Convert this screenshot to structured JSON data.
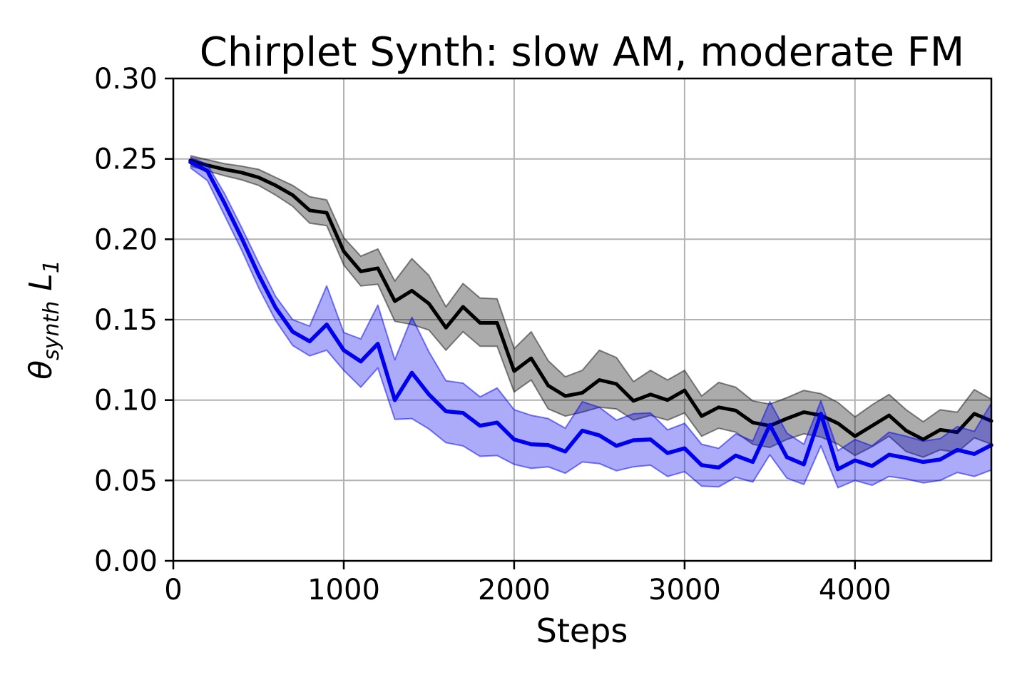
{
  "chart_data": {
    "type": "line",
    "title": "Chirplet Synth: slow AM, moderate FM",
    "xlabel": "Steps",
    "ylabel": "θ_synth L_1",
    "ylabel_parts": [
      "θ",
      "synth",
      "L",
      "1"
    ],
    "xlim": [
      0,
      4800
    ],
    "ylim": [
      0.0,
      0.3
    ],
    "grid": true,
    "legend": "none",
    "background_color": "#ffffff",
    "grid_color": "#b2b2b2",
    "spine_color": "#000000",
    "xticks": [
      {
        "v": 0,
        "label": "0"
      },
      {
        "v": 1000,
        "label": "1000"
      },
      {
        "v": 2000,
        "label": "2000"
      },
      {
        "v": 3000,
        "label": "3000"
      },
      {
        "v": 4000,
        "label": "4000"
      }
    ],
    "yticks": [
      {
        "v": 0.0,
        "label": "0.00"
      },
      {
        "v": 0.05,
        "label": "0.05"
      },
      {
        "v": 0.1,
        "label": "0.10"
      },
      {
        "v": 0.15,
        "label": "0.15"
      },
      {
        "v": 0.2,
        "label": "0.20"
      },
      {
        "v": 0.25,
        "label": "0.25"
      },
      {
        "v": 0.3,
        "label": "0.30"
      }
    ],
    "steps": [
      100,
      200,
      300,
      400,
      500,
      600,
      700,
      800,
      900,
      1000,
      1100,
      1200,
      1300,
      1400,
      1500,
      1600,
      1700,
      1800,
      1900,
      2000,
      2100,
      2200,
      2300,
      2400,
      2500,
      2600,
      2700,
      2800,
      2900,
      3000,
      3100,
      3200,
      3300,
      3400,
      3500,
      3600,
      3700,
      3800,
      3900,
      4000,
      4100,
      4200,
      4300,
      4400,
      4500,
      4600,
      4700,
      4800
    ],
    "series": [
      {
        "id": "black-curve",
        "color": "#000000",
        "band_fill": "rgba(0,0,0,0.33)",
        "band_edge": "rgba(0,0,0,0.45)",
        "line_width": 5,
        "mean": [
          0.249,
          0.246,
          0.2435,
          0.2415,
          0.2385,
          0.2335,
          0.2275,
          0.218,
          0.2165,
          0.1925,
          0.18,
          0.182,
          0.1615,
          0.168,
          0.16,
          0.145,
          0.158,
          0.148,
          0.148,
          0.118,
          0.126,
          0.109,
          0.1025,
          0.1045,
          0.1125,
          0.11,
          0.0995,
          0.1035,
          0.1,
          0.106,
          0.09,
          0.0955,
          0.0935,
          0.086,
          0.084,
          0.0885,
          0.0925,
          0.0905,
          0.0855,
          0.0775,
          0.084,
          0.0905,
          0.081,
          0.0755,
          0.0815,
          0.08,
          0.0915,
          0.087
        ],
        "band_hi": [
          0.252,
          0.2495,
          0.247,
          0.2455,
          0.2435,
          0.2385,
          0.2335,
          0.2265,
          0.2245,
          0.201,
          0.1895,
          0.194,
          0.174,
          0.188,
          0.1775,
          0.158,
          0.1725,
          0.1635,
          0.163,
          0.132,
          0.1425,
          0.1245,
          0.1145,
          0.1185,
          0.131,
          0.1265,
          0.1115,
          0.1185,
          0.1125,
          0.1185,
          0.1025,
          0.111,
          0.108,
          0.0995,
          0.0975,
          0.1015,
          0.106,
          0.104,
          0.0985,
          0.0895,
          0.097,
          0.1035,
          0.094,
          0.0865,
          0.094,
          0.0925,
          0.1065,
          0.1005
        ],
        "band_lo": [
          0.2455,
          0.2425,
          0.2395,
          0.237,
          0.2335,
          0.2275,
          0.2205,
          0.21,
          0.2085,
          0.184,
          0.171,
          0.172,
          0.149,
          0.147,
          0.1435,
          0.131,
          0.1425,
          0.1335,
          0.1335,
          0.105,
          0.1125,
          0.0945,
          0.09,
          0.0925,
          0.0955,
          0.0945,
          0.0875,
          0.0905,
          0.0875,
          0.092,
          0.0775,
          0.0825,
          0.08,
          0.0725,
          0.0705,
          0.0755,
          0.079,
          0.077,
          0.0725,
          0.0655,
          0.071,
          0.0775,
          0.068,
          0.0645,
          0.069,
          0.0675,
          0.0765,
          0.0725
        ]
      },
      {
        "id": "blue-curve",
        "color": "#0000ee",
        "band_fill": "rgba(0,0,238,0.33)",
        "band_edge": "rgba(0,0,238,0.50)",
        "line_width": 5.5,
        "mean": [
          0.248,
          0.2425,
          0.2225,
          0.201,
          0.178,
          0.1575,
          0.1425,
          0.1365,
          0.147,
          0.131,
          0.124,
          0.135,
          0.1,
          0.117,
          0.1035,
          0.093,
          0.092,
          0.084,
          0.086,
          0.0755,
          0.0725,
          0.072,
          0.068,
          0.081,
          0.078,
          0.0715,
          0.075,
          0.0755,
          0.067,
          0.07,
          0.0595,
          0.058,
          0.0655,
          0.0615,
          0.0845,
          0.0645,
          0.06,
          0.0915,
          0.057,
          0.0625,
          0.059,
          0.066,
          0.064,
          0.0615,
          0.063,
          0.069,
          0.0665,
          0.072
        ],
        "band_hi": [
          0.251,
          0.2465,
          0.2285,
          0.2075,
          0.1855,
          0.1645,
          0.15,
          0.146,
          0.171,
          0.142,
          0.138,
          0.159,
          0.125,
          0.1515,
          0.13,
          0.112,
          0.1105,
          0.102,
          0.1075,
          0.094,
          0.0905,
          0.0885,
          0.0825,
          0.099,
          0.0955,
          0.0875,
          0.0915,
          0.092,
          0.0815,
          0.0855,
          0.0725,
          0.07,
          0.079,
          0.0745,
          0.099,
          0.0795,
          0.0725,
          0.0995,
          0.0685,
          0.0755,
          0.0715,
          0.08,
          0.0775,
          0.0745,
          0.076,
          0.0835,
          0.0805,
          0.098
        ],
        "band_lo": [
          0.2445,
          0.2365,
          0.215,
          0.1935,
          0.17,
          0.1495,
          0.134,
          0.1275,
          0.131,
          0.1185,
          0.108,
          0.12,
          0.088,
          0.0885,
          0.082,
          0.0735,
          0.0715,
          0.065,
          0.0655,
          0.06,
          0.0575,
          0.0585,
          0.0545,
          0.0615,
          0.0605,
          0.056,
          0.0585,
          0.0595,
          0.0525,
          0.0555,
          0.0465,
          0.046,
          0.052,
          0.049,
          0.066,
          0.0515,
          0.0475,
          0.0715,
          0.0455,
          0.05,
          0.047,
          0.0525,
          0.051,
          0.0485,
          0.05,
          0.055,
          0.0525,
          0.0565
        ]
      }
    ]
  }
}
